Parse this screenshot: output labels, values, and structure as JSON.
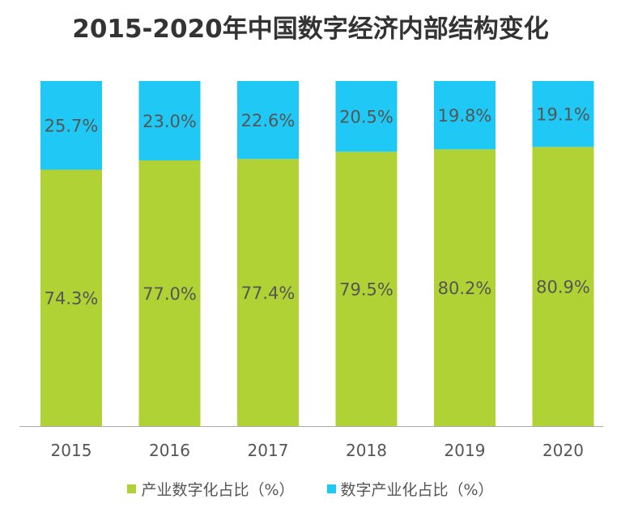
{
  "chart_data": {
    "type": "bar",
    "stacked": true,
    "title": "2015-2020年中国数字经济内部结构变化",
    "categories": [
      "2015",
      "2016",
      "2017",
      "2018",
      "2019",
      "2020"
    ],
    "series": [
      {
        "name": "产业数字化占比（%）",
        "color": "#b1d235",
        "values": [
          74.3,
          77.0,
          77.4,
          79.5,
          80.2,
          80.9
        ]
      },
      {
        "name": "数字产业化占比（%）",
        "color": "#1fc8f5",
        "values": [
          25.7,
          23.0,
          22.6,
          20.5,
          19.8,
          19.1
        ]
      }
    ],
    "ylim": [
      0,
      100
    ],
    "data_label_suffix": "%",
    "legend_position": "bottom",
    "grid": false,
    "axis_line_color": "#aaaaaa",
    "label_color": "#555555"
  }
}
